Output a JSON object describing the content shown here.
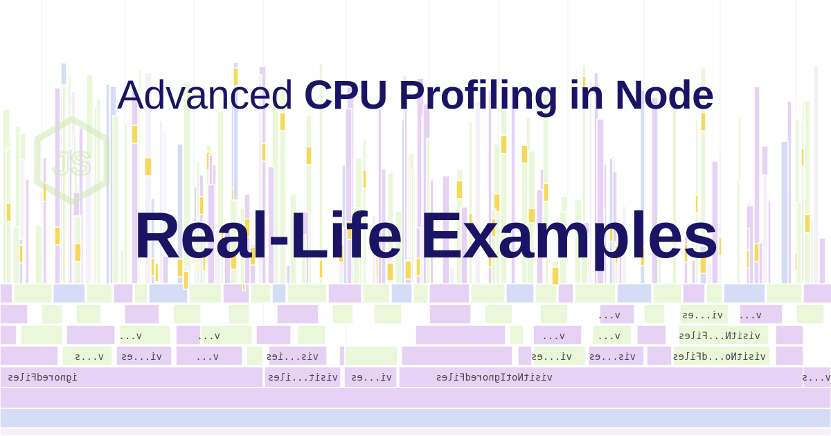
{
  "title": {
    "prefix": "Advanced",
    "emphasis": "CPU Profiling in Node"
  },
  "subtitle": "Real-Life Examples",
  "logo": {
    "icon": "nodejs-hexagon-icon",
    "text": "JS",
    "color": "#cfe8b4"
  },
  "colors": {
    "text": "#1b1364",
    "flame_purple": "#e6d2f4",
    "flame_green": "#eaf7d9",
    "flame_yellow": "#f7d95a",
    "flame_blue": "#d4dcf6",
    "flame_light": "#f5f0fa"
  },
  "flame_labels": [
    "ignoredFiles",
    "visit...iles",
    "vi...es",
    "visitNotIgnoredFiles",
    "v...s",
    "v...s",
    "vi...es",
    "v...",
    "vis...ies",
    "v...",
    "v...",
    "vi...es",
    "vis...es",
    "visitNo...dFiles",
    "v...",
    "v...",
    "visitN...Files",
    "v...",
    "vi...es",
    "v..."
  ]
}
